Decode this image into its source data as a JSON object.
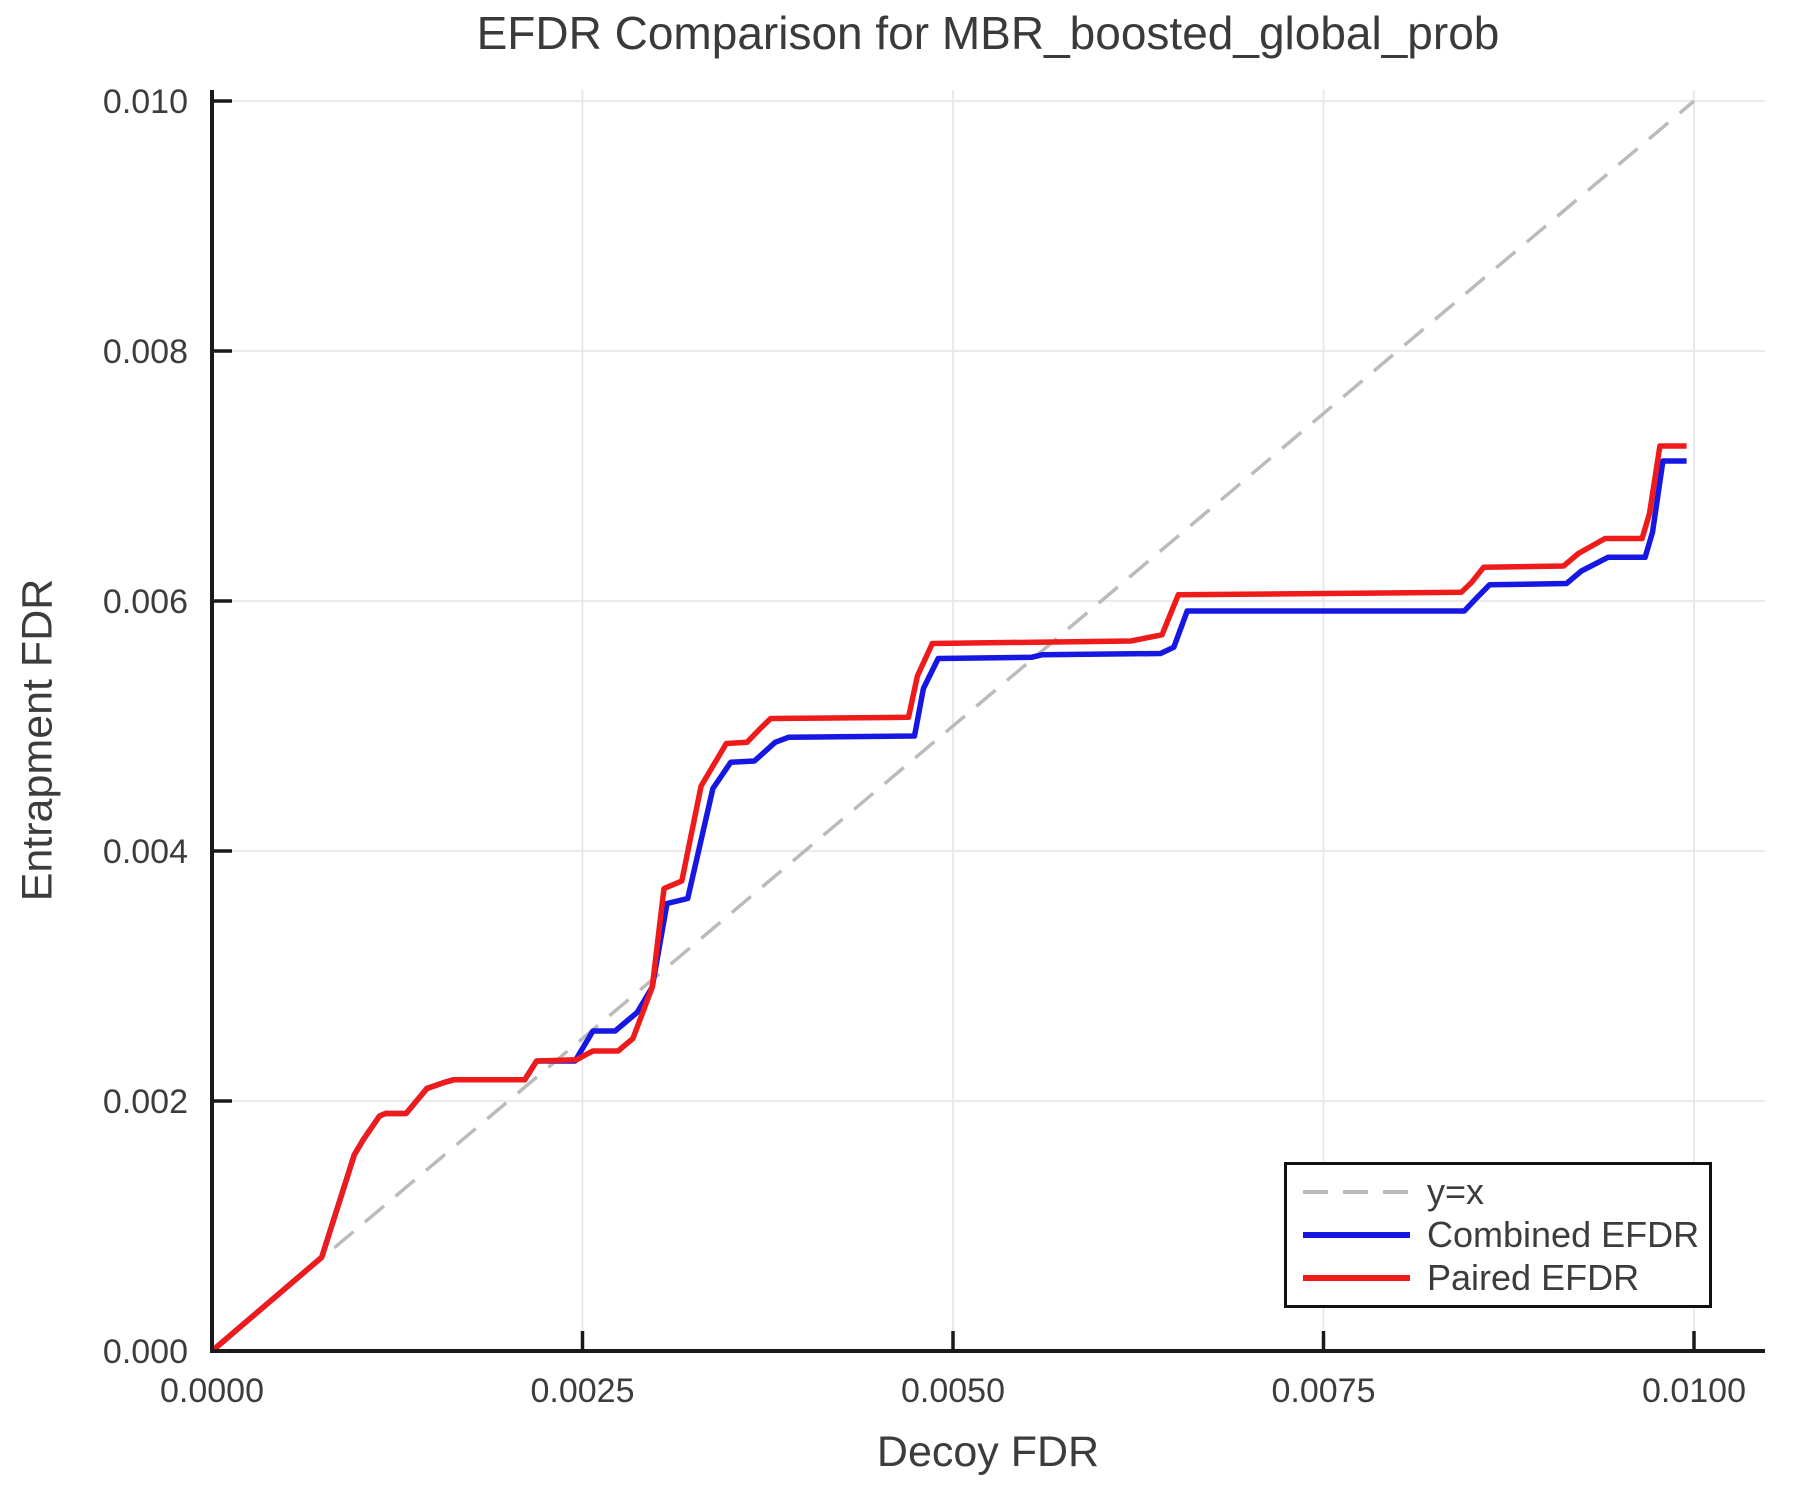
{
  "chart_data": {
    "type": "line",
    "title": "EFDR Comparison for MBR_boosted_global_prob",
    "xlabel": "Decoy FDR",
    "ylabel": "Entrapment FDR",
    "xlim": [
      0,
      0.0105
    ],
    "ylim": [
      0,
      0.0101
    ],
    "grid": true,
    "legend_position": "lower right",
    "x_tick_values": [
      0,
      0.0025,
      0.005,
      0.0075,
      0.01
    ],
    "x_tick_labels": [
      "0.0000",
      "0.0025",
      "0.0050",
      "0.0075",
      "0.0100"
    ],
    "y_tick_values": [
      0,
      0.002,
      0.004,
      0.006,
      0.008,
      0.01
    ],
    "y_tick_labels": [
      "0.000",
      "0.002",
      "0.004",
      "0.006",
      "0.008",
      "0.010"
    ],
    "colors": {
      "grid": "#e7e7e7",
      "spine": "#1a1a1a",
      "text": "#3c3c3c",
      "identity": "#bbbbbb",
      "combined": "#1717e3",
      "paired": "#ef1a1a"
    },
    "series": [
      {
        "id": "identity-line",
        "name": "y=x",
        "color": "#bbbbbb",
        "style": "dashed",
        "points": [
          [
            0,
            0
          ],
          [
            0.01,
            0.01
          ]
        ]
      },
      {
        "id": "combined-efdr-line",
        "name": "Combined EFDR",
        "color": "#1717e3",
        "style": "solid",
        "points": [
          [
            0.0,
            0.0
          ],
          [
            0.00074,
            0.00075
          ],
          [
            0.00096,
            0.00157
          ],
          [
            0.00102,
            0.00169
          ],
          [
            0.00113,
            0.00188
          ],
          [
            0.00117,
            0.0019
          ],
          [
            0.00131,
            0.0019
          ],
          [
            0.00145,
            0.0021
          ],
          [
            0.00157,
            0.00215
          ],
          [
            0.00163,
            0.00217
          ],
          [
            0.00211,
            0.00217
          ],
          [
            0.00219,
            0.00232
          ],
          [
            0.00245,
            0.00232
          ],
          [
            0.00257,
            0.00256
          ],
          [
            0.00272,
            0.00256
          ],
          [
            0.00287,
            0.00271
          ],
          [
            0.00297,
            0.00291
          ],
          [
            0.00307,
            0.00358
          ],
          [
            0.00321,
            0.00362
          ],
          [
            0.00338,
            0.0045
          ],
          [
            0.0035,
            0.00471
          ],
          [
            0.00366,
            0.00472
          ],
          [
            0.0038,
            0.00487
          ],
          [
            0.00389,
            0.00491
          ],
          [
            0.00474,
            0.00492
          ],
          [
            0.0048,
            0.0053
          ],
          [
            0.0049,
            0.00554
          ],
          [
            0.00553,
            0.00555
          ],
          [
            0.0056,
            0.00557
          ],
          [
            0.0064,
            0.00558
          ],
          [
            0.00649,
            0.00563
          ],
          [
            0.00658,
            0.00592
          ],
          [
            0.00845,
            0.00592
          ],
          [
            0.00853,
            0.00602
          ],
          [
            0.00862,
            0.00613
          ],
          [
            0.00914,
            0.00614
          ],
          [
            0.00924,
            0.00624
          ],
          [
            0.00942,
            0.00635
          ],
          [
            0.00967,
            0.00635
          ],
          [
            0.00972,
            0.00655
          ],
          [
            0.00979,
            0.00712
          ],
          [
            0.00995,
            0.00712
          ]
        ]
      },
      {
        "id": "paired-efdr-line",
        "name": "Paired EFDR",
        "color": "#ef1a1a",
        "style": "solid",
        "points": [
          [
            0.0,
            0.0
          ],
          [
            0.00074,
            0.00075
          ],
          [
            0.00096,
            0.00157
          ],
          [
            0.00102,
            0.00169
          ],
          [
            0.00113,
            0.00188
          ],
          [
            0.00117,
            0.0019
          ],
          [
            0.00131,
            0.0019
          ],
          [
            0.00145,
            0.0021
          ],
          [
            0.00157,
            0.00215
          ],
          [
            0.00163,
            0.00217
          ],
          [
            0.00211,
            0.00217
          ],
          [
            0.00219,
            0.00232
          ],
          [
            0.00246,
            0.00233
          ],
          [
            0.00252,
            0.00237
          ],
          [
            0.00257,
            0.0024
          ],
          [
            0.00274,
            0.0024
          ],
          [
            0.00284,
            0.0025
          ],
          [
            0.00297,
            0.00291
          ],
          [
            0.00305,
            0.0037
          ],
          [
            0.00317,
            0.00376
          ],
          [
            0.0033,
            0.00452
          ],
          [
            0.00347,
            0.00486
          ],
          [
            0.00361,
            0.00487
          ],
          [
            0.0037,
            0.00498
          ],
          [
            0.00377,
            0.00506
          ],
          [
            0.0047,
            0.00507
          ],
          [
            0.00476,
            0.0054
          ],
          [
            0.00486,
            0.00566
          ],
          [
            0.0062,
            0.00568
          ],
          [
            0.00641,
            0.00573
          ],
          [
            0.00652,
            0.00605
          ],
          [
            0.00843,
            0.00607
          ],
          [
            0.0085,
            0.00615
          ],
          [
            0.00858,
            0.00627
          ],
          [
            0.00912,
            0.00628
          ],
          [
            0.00922,
            0.00638
          ],
          [
            0.0094,
            0.0065
          ],
          [
            0.00965,
            0.0065
          ],
          [
            0.0097,
            0.0067
          ],
          [
            0.00977,
            0.00724
          ],
          [
            0.00995,
            0.00724
          ]
        ]
      }
    ]
  }
}
